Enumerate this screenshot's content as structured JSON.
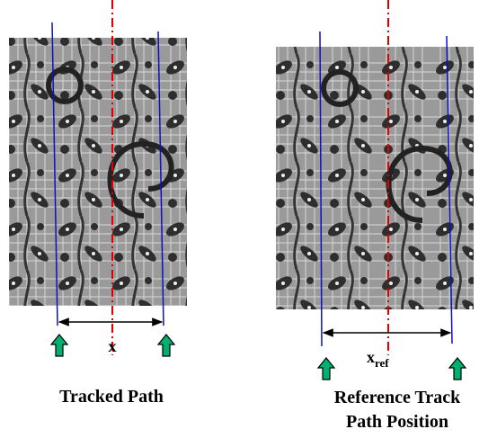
{
  "labels": {
    "x": "x",
    "x_ref_base": "x",
    "x_ref_sub": "ref",
    "left_caption": "Tracked Path",
    "right_caption_lines": [
      "Reference Track",
      "Path Position"
    ]
  }
}
